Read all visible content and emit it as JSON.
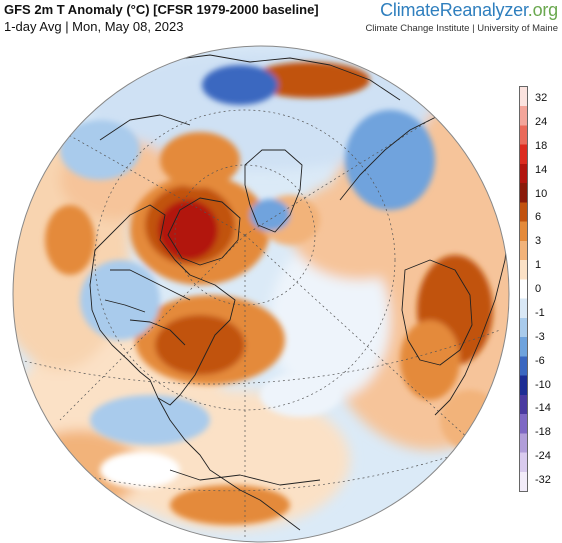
{
  "header": {
    "title": "GFS 2m T Anomaly (°C) [CFSR 1979-2000 baseline]",
    "subtitle": "1-day Avg | Mon, May 08, 2023"
  },
  "brand": {
    "part1": "Climate",
    "part2": "Reanalyzer",
    "part3": ".org",
    "affiliation": "Climate Change Institute | University of Maine"
  },
  "map": {
    "projection": "orthographic",
    "ocean_color": "#d9ecf8",
    "land_outline_color": "#222222"
  },
  "legend": {
    "labels": [
      "32",
      "24",
      "18",
      "14",
      "10",
      "6",
      "3",
      "1",
      "0",
      "-1",
      "-3",
      "-6",
      "-10",
      "-14",
      "-18",
      "-24",
      "-32"
    ],
    "colors": [
      "#fbe3df",
      "#f3a59a",
      "#ea6a5a",
      "#dc2b1f",
      "#b2150f",
      "#8a1a0a",
      "#c1520f",
      "#e48a3a",
      "#f2b37a",
      "#fbe1c6",
      "#ffffff",
      "#d9e8f6",
      "#a9cbec",
      "#6fa3dd",
      "#3b67c0",
      "#1d2d94",
      "#4a3aa0",
      "#7e68c4",
      "#b19ed9",
      "#d9cbee",
      "#f2ecf9"
    ]
  }
}
